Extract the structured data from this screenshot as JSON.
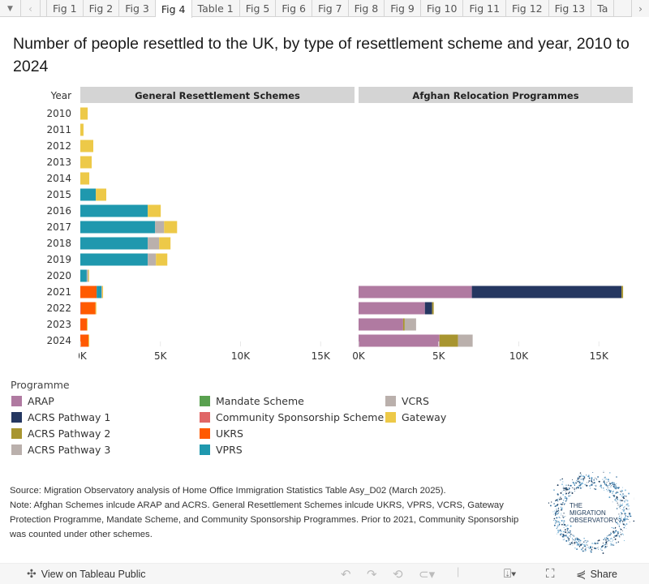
{
  "tabs": {
    "menu_icon": "dropdown-triangle",
    "prev_icon": "chevron-left",
    "next_icon": "chevron-right",
    "items": [
      "Fig 1",
      "Fig 2",
      "Fig 3",
      "Fig 4",
      "Table 1",
      "Fig 5",
      "Fig 6",
      "Fig 7",
      "Fig 8",
      "Fig 9",
      "Fig 10",
      "Fig 11",
      "Fig 12",
      "Fig 13",
      "Ta"
    ],
    "active": "Fig 4"
  },
  "title": "Number of people resettled to the UK, by type of resettlement scheme and year, 2010 to 2024",
  "legend": {
    "title": "Programme",
    "items": [
      {
        "label": "ARAP",
        "color": "#b07aa1"
      },
      {
        "label": "ACRS Pathway 1",
        "color": "#253761"
      },
      {
        "label": "ACRS Pathway 2",
        "color": "#a89530"
      },
      {
        "label": "ACRS Pathway 3",
        "color": "#bab0ac"
      },
      {
        "label": "Mandate Scheme",
        "color": "#59a14f"
      },
      {
        "label": "Community Sponsorship Scheme",
        "color": "#e06666"
      },
      {
        "label": "UKRS",
        "color": "#ff5a00"
      },
      {
        "label": "VPRS",
        "color": "#1f98ae"
      },
      {
        "label": "VCRS",
        "color": "#bab0ac"
      },
      {
        "label": "Gateway",
        "color": "#edc948"
      }
    ]
  },
  "chart_data": {
    "type": "bar",
    "orientation": "horizontal-stacked",
    "title": "Number of people resettled to the UK, by type of resettlement scheme and year, 2010 to 2024",
    "row_header": "Year",
    "categories": [
      "2010",
      "2011",
      "2012",
      "2013",
      "2014",
      "2015",
      "2016",
      "2017",
      "2018",
      "2019",
      "2020",
      "2021",
      "2022",
      "2023",
      "2024"
    ],
    "xlim": [
      0,
      17000
    ],
    "x_ticks": [
      "0K",
      "5K",
      "10K",
      "15K"
    ],
    "x_tick_values": [
      0,
      5000,
      10000,
      15000
    ],
    "grid": false,
    "legend_position": "bottom",
    "panels": [
      {
        "name": "General Resettlement Schemes",
        "series": [
          {
            "name": "Community Sponsorship Scheme",
            "values": [
              0,
              0,
              0,
              0,
              0,
              0,
              0,
              0,
              0,
              0,
              0,
              0,
              40,
              0,
              0
            ]
          },
          {
            "name": "UKRS",
            "values": [
              0,
              0,
              0,
              0,
              0,
              0,
              0,
              0,
              0,
              0,
              0,
              1020,
              910,
              410,
              510
            ]
          },
          {
            "name": "VPRS",
            "values": [
              0,
              0,
              0,
              0,
              0,
              970,
              4210,
              4670,
              4210,
              4210,
              400,
              300,
              0,
              0,
              0
            ]
          },
          {
            "name": "VCRS",
            "values": [
              0,
              0,
              0,
              0,
              0,
              0,
              0,
              560,
              710,
              510,
              100,
              40,
              0,
              0,
              0
            ]
          },
          {
            "name": "Gateway",
            "values": [
              460,
              200,
              810,
              710,
              560,
              650,
              810,
              810,
              710,
              710,
              50,
              60,
              50,
              50,
              50
            ]
          }
        ]
      },
      {
        "name": "Afghan Relocation Programmes",
        "series": [
          {
            "name": "ARAP",
            "values": [
              0,
              0,
              0,
              0,
              0,
              0,
              0,
              0,
              0,
              0,
              0,
              7070,
              4140,
              2780,
              5050
            ]
          },
          {
            "name": "ACRS Pathway 1",
            "values": [
              0,
              0,
              0,
              0,
              0,
              0,
              0,
              0,
              0,
              0,
              0,
              9340,
              450,
              0,
              0
            ]
          },
          {
            "name": "ACRS Pathway 2",
            "values": [
              0,
              0,
              0,
              0,
              0,
              0,
              0,
              0,
              0,
              0,
              0,
              100,
              100,
              100,
              1160
            ]
          },
          {
            "name": "ACRS Pathway 3",
            "values": [
              0,
              0,
              0,
              0,
              0,
              0,
              0,
              0,
              0,
              0,
              0,
              0,
              0,
              710,
              910
            ]
          }
        ]
      }
    ]
  },
  "notes": {
    "source": "Source: Migration Observatory analysis of Home Office Immigration Statistics Table Asy_D02 (March 2025).",
    "note": "Note: Afghan Schemes inlcude ARAP and ACRS. General Resettlement Schemes inlcude UKRS, VPRS, VCRS, Gateway Protection Programme, Mandate Scheme, and Community Sponsorship Programmes. Prior to 2021, Community Sponsorship was counted under other schemes."
  },
  "logo": {
    "line1": "THE",
    "line2": "MIGRATION",
    "line3": "OBSERVATORY"
  },
  "toolbar": {
    "view_label": "View on Tableau Public",
    "share_label": "Share"
  }
}
